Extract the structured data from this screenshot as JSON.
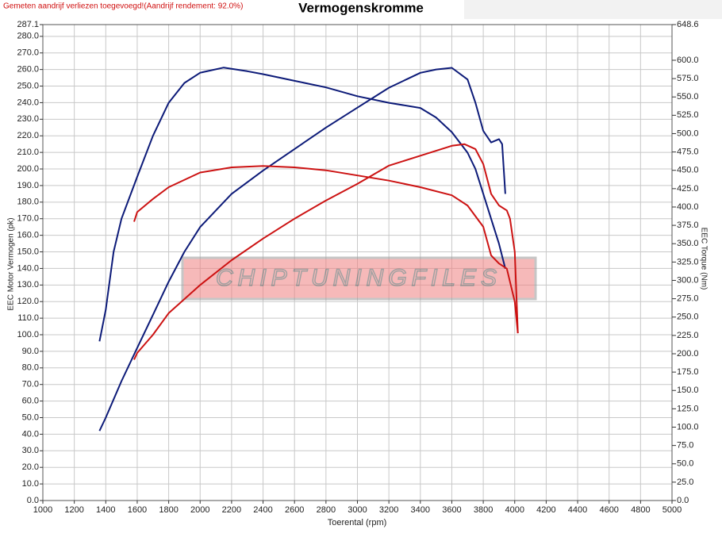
{
  "chart_data": {
    "type": "line",
    "note": "Gemeten aandrijf verliezen toegevoegd!(Aandrijf rendement: 92.0%)",
    "title": "Vermogenskromme",
    "xlabel": "Toerental (rpm)",
    "ylabel": "EEC Motor Vermogen (pk)",
    "y2label": "EEC Torque (Nm)",
    "watermark": "CHIPTUNINGFILES",
    "grid": true,
    "xlim": [
      1000,
      5000
    ],
    "xticks": [
      1000,
      1200,
      1400,
      1600,
      1800,
      2000,
      2200,
      2400,
      2600,
      2800,
      3000,
      3200,
      3400,
      3600,
      3800,
      4000,
      4200,
      4400,
      4600,
      4800,
      5000
    ],
    "ylim": [
      0,
      287.1
    ],
    "yticks": [
      {
        "value": 0,
        "label": "0.0"
      },
      {
        "value": 10,
        "label": "10.0"
      },
      {
        "value": 20,
        "label": "20.0"
      },
      {
        "value": 30,
        "label": "30.0"
      },
      {
        "value": 40,
        "label": "40.0"
      },
      {
        "value": 50,
        "label": "50.0"
      },
      {
        "value": 60,
        "label": "60.0"
      },
      {
        "value": 70,
        "label": "70.0"
      },
      {
        "value": 80,
        "label": "80.0"
      },
      {
        "value": 90,
        "label": "90.0"
      },
      {
        "value": 100,
        "label": "100.0"
      },
      {
        "value": 110,
        "label": "110.0"
      },
      {
        "value": 120,
        "label": "120.0"
      },
      {
        "value": 130,
        "label": "130.0"
      },
      {
        "value": 140,
        "label": "140.0"
      },
      {
        "value": 150,
        "label": "150.0"
      },
      {
        "value": 160,
        "label": "160.0"
      },
      {
        "value": 170,
        "label": "170.0"
      },
      {
        "value": 180,
        "label": "180.0"
      },
      {
        "value": 190,
        "label": "190.0"
      },
      {
        "value": 200,
        "label": "200.0"
      },
      {
        "value": 210,
        "label": "210.0"
      },
      {
        "value": 220,
        "label": "220.0"
      },
      {
        "value": 230,
        "label": "230.0"
      },
      {
        "value": 240,
        "label": "240.0"
      },
      {
        "value": 250,
        "label": "250.0"
      },
      {
        "value": 260,
        "label": "260.0"
      },
      {
        "value": 270,
        "label": "270.0"
      },
      {
        "value": 280,
        "label": "280.0"
      },
      287.1
    ],
    "y2lim": [
      0,
      648.6
    ],
    "y2ticks": [
      {
        "value": 0,
        "label": "0.0"
      },
      {
        "value": 25,
        "label": "25.0"
      },
      {
        "value": 50,
        "label": "50.0"
      },
      {
        "value": 75,
        "label": "75.0"
      },
      {
        "value": 100,
        "label": "100.0"
      },
      {
        "value": 125,
        "label": "125.0"
      },
      {
        "value": 150,
        "label": "150.0"
      },
      {
        "value": 175,
        "label": "175.0"
      },
      {
        "value": 200,
        "label": "200.0"
      },
      {
        "value": 225,
        "label": "225.0"
      },
      {
        "value": 250,
        "label": "250.0"
      },
      {
        "value": 275,
        "label": "275.0"
      },
      {
        "value": 300,
        "label": "300.0"
      },
      {
        "value": 325,
        "label": "325.0"
      },
      {
        "value": 350,
        "label": "350.0"
      },
      {
        "value": 375,
        "label": "375.0"
      },
      {
        "value": 400,
        "label": "400.0"
      },
      {
        "value": 425,
        "label": "425.0"
      },
      {
        "value": 450,
        "label": "450.0"
      },
      {
        "value": 475,
        "label": "475.0"
      },
      {
        "value": 500,
        "label": "500.0"
      },
      {
        "value": 525,
        "label": "525.0"
      },
      {
        "value": 550,
        "label": "550.0"
      },
      {
        "value": 575,
        "label": "575.0"
      },
      {
        "value": 600,
        "label": "600.0"
      },
      648.6
    ],
    "series": [
      {
        "color": "#0c1a78",
        "axis": "y",
        "x": [
          1360,
          1400,
          1500,
          1600,
          1700,
          1800,
          1900,
          2000,
          2200,
          2400,
          2600,
          2800,
          3000,
          3200,
          3400,
          3500,
          3600,
          3700,
          3750,
          3800,
          3850,
          3900,
          3920,
          3940
        ],
        "values": [
          42,
          50,
          72,
          92,
          112,
          132,
          150,
          165,
          185,
          199,
          212,
          225,
          237,
          249,
          258,
          260,
          261,
          254,
          240,
          223,
          216,
          218,
          215,
          185
        ]
      },
      {
        "color": "#0c1a78",
        "axis": "y2",
        "x": [
          1360,
          1400,
          1450,
          1500,
          1600,
          1700,
          1800,
          1900,
          2000,
          2150,
          2300,
          2400,
          2600,
          2800,
          3000,
          3200,
          3400,
          3500,
          3600,
          3700,
          3750,
          3800,
          3850,
          3900,
          3940
        ],
        "values": [
          217,
          260,
          339,
          384,
          441,
          497,
          542,
          569,
          583,
          590,
          585,
          581,
          572,
          563,
          551,
          542,
          535,
          522,
          502,
          474,
          452,
          418,
          384,
          350,
          316
        ]
      },
      {
        "color": "#cc1212",
        "axis": "y",
        "x": [
          1580,
          1600,
          1700,
          1800,
          2000,
          2200,
          2400,
          2600,
          2800,
          3000,
          3200,
          3400,
          3600,
          3680,
          3750,
          3800,
          3850,
          3900,
          3950,
          3970,
          4000,
          4020
        ],
        "values": [
          85,
          89,
          100,
          113,
          130,
          145,
          158,
          170,
          181,
          191,
          202,
          208,
          214,
          215,
          212,
          203,
          185,
          178,
          175,
          170,
          150,
          101
        ]
      },
      {
        "color": "#cc1212",
        "axis": "y2",
        "x": [
          1580,
          1600,
          1700,
          1800,
          2000,
          2200,
          2400,
          2600,
          2800,
          3000,
          3200,
          3400,
          3600,
          3700,
          3800,
          3850,
          3900,
          3950,
          4000,
          4020
        ],
        "values": [
          380,
          393,
          411,
          427,
          447,
          454,
          456,
          454,
          450,
          443,
          436,
          427,
          416,
          402,
          373,
          334,
          323,
          316,
          271,
          228
        ]
      }
    ]
  }
}
